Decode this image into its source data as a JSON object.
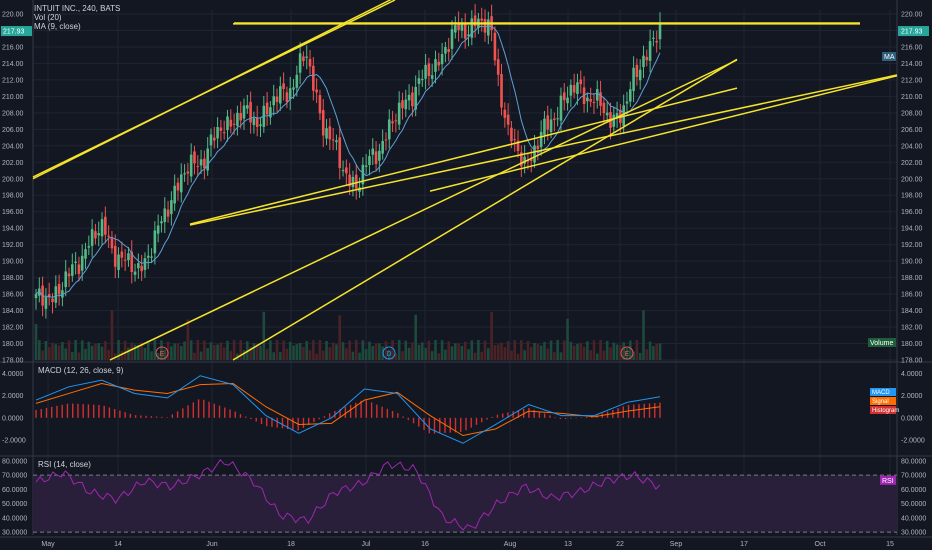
{
  "header": {
    "symbol_line": "INTUIT INC., 240, BATS",
    "vol_line": "Vol (20)",
    "ma_line": "MA (9, close)"
  },
  "price_panel": {
    "ylim": [
      178,
      220
    ],
    "ticks": [
      "220.00",
      "218.00",
      "216.00",
      "214.00",
      "212.00",
      "210.00",
      "208.00",
      "206.00",
      "204.00",
      "202.00",
      "200.00",
      "198.00",
      "196.00",
      "194.00",
      "192.00",
      "190.00",
      "188.00",
      "186.00",
      "184.00",
      "182.00",
      "180.00",
      "178.00"
    ],
    "last_price_label": "217.93",
    "ma_tag": "MA",
    "volume_tag": "Volume",
    "earnings_markers": [
      "E",
      "D",
      "E"
    ]
  },
  "macd_panel": {
    "title": "MACD (12, 26, close, 9)",
    "ticks": [
      "4.0000",
      "2.0000",
      "0.0000",
      "-2.0000"
    ],
    "tags": [
      "MACD",
      "Signal",
      "Histogram"
    ]
  },
  "rsi_panel": {
    "title": "RSI (14, close)",
    "ticks": [
      "80.0000",
      "70.0000",
      "60.0000",
      "50.0000",
      "40.0000",
      "30.0000"
    ],
    "tag": "RSI",
    "bands": [
      70,
      30
    ]
  },
  "time_axis": {
    "labels": [
      "May",
      "14",
      "Jun",
      "18",
      "Jul",
      "16",
      "Aug",
      "13",
      "22",
      "Sep",
      "17",
      "Oct",
      "15"
    ]
  },
  "colors": {
    "up": "#26a69a",
    "up_bright": "#53b987",
    "down": "#ef5350",
    "trendline": "#f5e42b",
    "ma": "#5e9fd6",
    "macd": "#2196f3",
    "signal": "#ff6d00",
    "rsi": "#9c27b0",
    "rsi_band": "#2a1f3a"
  },
  "chart_data": [
    {
      "type": "candlestick",
      "title": "INTUIT INC., 240, BATS",
      "ylim": [
        178,
        220
      ],
      "approx_closes": [
        185,
        186,
        188,
        192,
        194,
        190,
        189,
        192,
        198,
        201,
        203,
        206,
        208,
        207,
        209,
        211,
        215,
        207,
        202,
        199,
        203,
        206,
        210,
        212,
        215,
        218,
        219,
        218,
        205,
        202,
        205,
        209,
        211,
        210,
        207,
        209,
        215,
        217.93
      ],
      "trendlines": [
        {
          "from": [
            "Apr 27",
            200.0
          ],
          "to": [
            "Jun 27",
            222.0
          ]
        },
        {
          "from": [
            "May 23",
            194.5
          ],
          "to": [
            "Aug 25",
            211.0
          ]
        },
        {
          "from": [
            "Jun 1",
            178.0
          ],
          "to": [
            "Sep 12",
            214.5
          ]
        },
        {
          "from": [
            "Jun 1",
            218.8
          ],
          "to": [
            "Sep 28",
            218.8
          ]
        },
        {
          "from": [
            "Jul 1",
            198.5
          ],
          "to": [
            "Oct 15",
            212.5
          ]
        }
      ]
    },
    {
      "type": "line",
      "title": "MACD (12, 26, close, 9)",
      "ylim": [
        -3,
        4.5
      ],
      "series": [
        {
          "name": "MACD",
          "values": [
            1.6,
            2.8,
            3.4,
            2.2,
            1.8,
            3.8,
            3.0,
            0.2,
            -1.4,
            0.0,
            2.6,
            2.2,
            -1.0,
            -2.3,
            -0.6,
            1.2,
            0.2,
            0.2,
            1.4,
            1.9
          ]
        },
        {
          "name": "Signal",
          "values": [
            1.3,
            2.2,
            3.1,
            2.5,
            2.2,
            3.0,
            3.1,
            1.0,
            -0.6,
            -0.5,
            1.6,
            2.3,
            0.2,
            -1.6,
            -1.0,
            0.6,
            0.4,
            0.1,
            0.6,
            1.0
          ]
        }
      ]
    },
    {
      "type": "line",
      "title": "RSI (14, close)",
      "ylim": [
        28,
        82
      ],
      "series": [
        {
          "name": "RSI",
          "values": [
            65,
            72,
            58,
            53,
            66,
            62,
            70,
            80,
            66,
            42,
            38,
            58,
            64,
            78,
            74,
            40,
            32,
            50,
            62,
            54,
            58,
            66,
            70,
            62
          ]
        }
      ]
    }
  ]
}
